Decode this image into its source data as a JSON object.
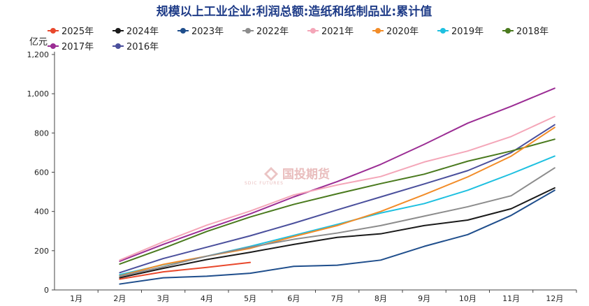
{
  "chart_data": {
    "type": "line",
    "title": "规模以上工业企业:利润总额:造纸和纸制品业:累计值",
    "unit_label": "亿元",
    "ylim": [
      0,
      1200
    ],
    "y_ticks": [
      0,
      200,
      400,
      600,
      800,
      1000,
      1200
    ],
    "y_tick_labels": [
      "0",
      "200",
      "400",
      "600",
      "800",
      "1,000",
      "1,200"
    ],
    "categories": [
      "1月",
      "2月",
      "3月",
      "4月",
      "5月",
      "6月",
      "7月",
      "8月",
      "9月",
      "10月",
      "11月",
      "12月"
    ],
    "grid": false,
    "legend_position": "top",
    "series": [
      {
        "name": "2025年",
        "color": "#e8482c",
        "values": [
          null,
          55,
          92,
          115,
          140,
          null,
          null,
          null,
          null,
          null,
          null,
          null
        ]
      },
      {
        "name": "2024年",
        "color": "#1a1a1a",
        "values": [
          null,
          62,
          110,
          155,
          192,
          232,
          268,
          286,
          328,
          356,
          414,
          520
        ]
      },
      {
        "name": "2023年",
        "color": "#1f4e8c",
        "values": [
          null,
          30,
          62,
          70,
          85,
          120,
          126,
          152,
          222,
          282,
          380,
          508
        ]
      },
      {
        "name": "2022年",
        "color": "#8c8c8c",
        "values": [
          null,
          70,
          118,
          172,
          218,
          258,
          290,
          328,
          376,
          424,
          480,
          622
        ]
      },
      {
        "name": "2021年",
        "color": "#f4a6b8",
        "values": [
          null,
          152,
          245,
          330,
          402,
          484,
          535,
          578,
          652,
          708,
          782,
          884
        ]
      },
      {
        "name": "2020年",
        "color": "#f28c28",
        "values": [
          null,
          72,
          130,
          172,
          212,
          272,
          328,
          400,
          486,
          576,
          682,
          828
        ]
      },
      {
        "name": "2019年",
        "color": "#1ec0e0",
        "values": [
          null,
          78,
          128,
          172,
          222,
          278,
          334,
          392,
          440,
          508,
          592,
          682
        ]
      },
      {
        "name": "2018年",
        "color": "#4a7a1e",
        "values": [
          null,
          132,
          212,
          298,
          372,
          436,
          490,
          542,
          590,
          656,
          708,
          768
        ]
      },
      {
        "name": "2017年",
        "color": "#9b2d94",
        "values": [
          null,
          146,
          232,
          312,
          388,
          474,
          552,
          640,
          742,
          850,
          936,
          1028
        ]
      },
      {
        "name": "2016年",
        "color": "#4a4f9c",
        "values": [
          null,
          88,
          160,
          218,
          276,
          340,
          408,
          474,
          540,
          608,
          700,
          842
        ]
      }
    ],
    "watermark": {
      "text": "国投期货",
      "subtext": "SDIC FUTURES"
    }
  }
}
